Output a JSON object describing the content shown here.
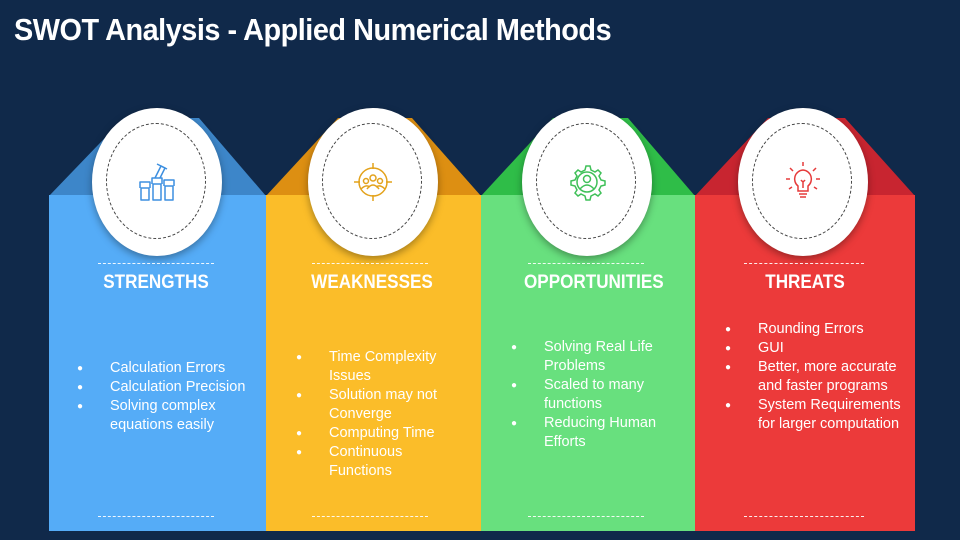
{
  "title": "SWOT Analysis - Applied Numerical Methods",
  "colors": {
    "background": "#10294a",
    "strengths": "#55acf7",
    "strengths_dark": "#3d86c9",
    "weaknesses": "#fbbd29",
    "weaknesses_dark": "#dd8f12",
    "opportunities": "#68e07e",
    "opportunities_dark": "#2fbd48",
    "threats": "#ec3a3a",
    "threats_dark": "#c82530"
  },
  "quadrants": [
    {
      "key": "strengths",
      "heading": "STRENGTHS",
      "icon": "raised-fists-icon",
      "items": [
        "Calculation Errors",
        "Calculation Precision",
        "Solving complex equations easily"
      ]
    },
    {
      "key": "weaknesses",
      "heading": "WEAKNESSES",
      "icon": "target-group-icon",
      "items": [
        "Time Complexity Issues",
        "Solution may not Converge",
        "Computing Time",
        "Continuous Functions"
      ]
    },
    {
      "key": "opportunities",
      "heading": "OPPORTUNITIES",
      "icon": "gear-person-icon",
      "items": [
        "Solving Real Life Problems",
        "Scaled to many functions",
        "Reducing Human Efforts"
      ]
    },
    {
      "key": "threats",
      "heading": "THREATS",
      "icon": "lightbulb-icon",
      "items": [
        "Rounding Errors",
        "GUI",
        "Better, more accurate and faster programs",
        "System Requirements for larger computation"
      ]
    }
  ]
}
